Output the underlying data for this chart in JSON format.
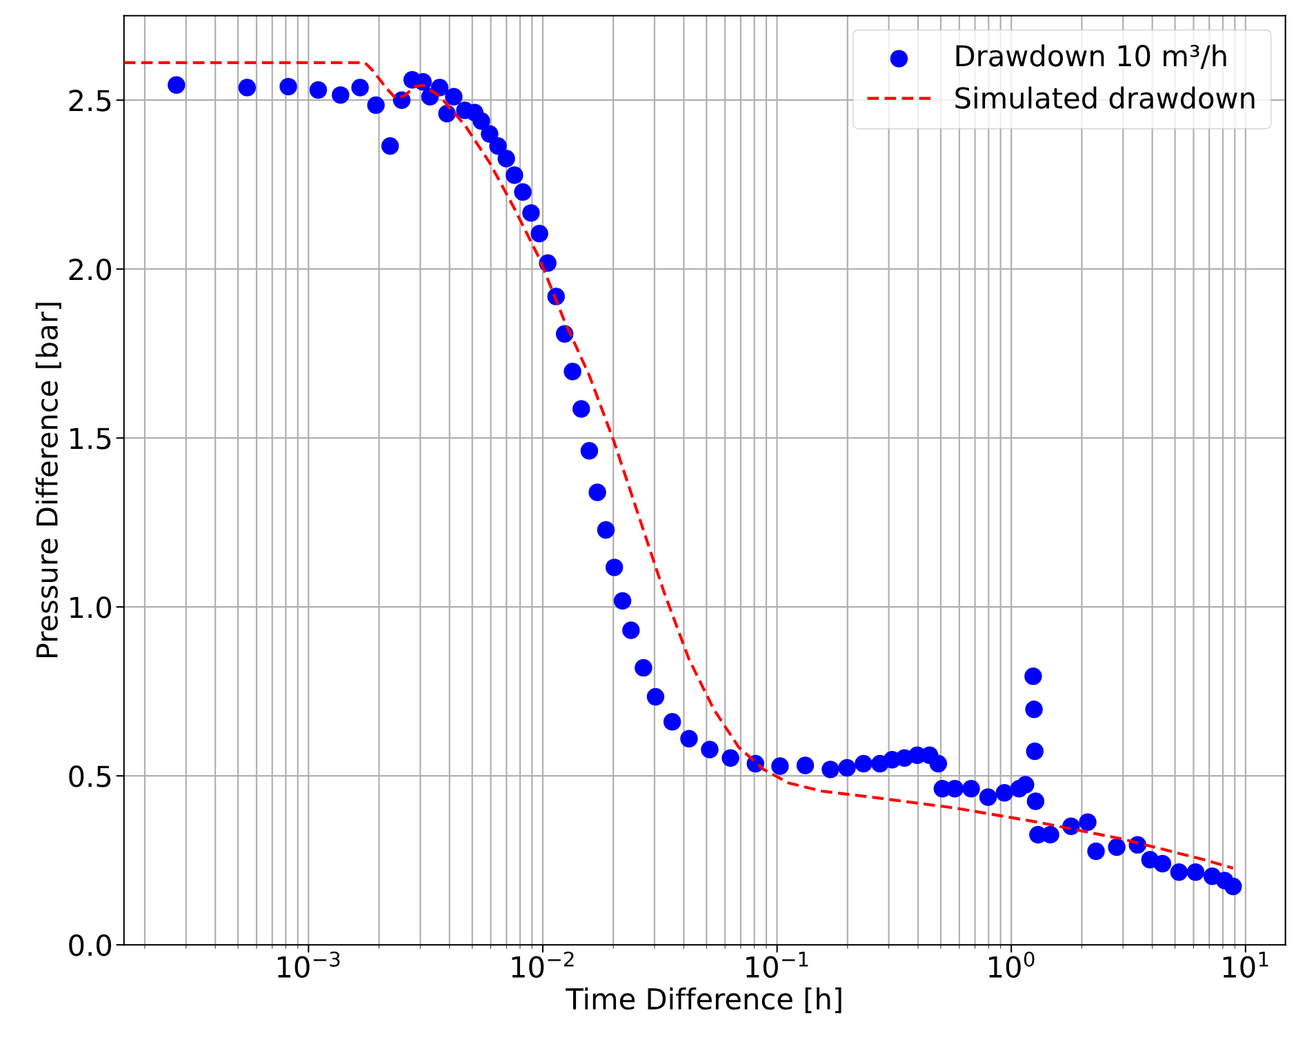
{
  "chart_data": {
    "type": "scatter",
    "xlabel": "Time Difference [h]",
    "ylabel": "Pressure Difference [bar]",
    "log": "x",
    "xlim": [
      0.000163,
      14.8
    ],
    "ylim": [
      0,
      2.75
    ],
    "xticks": [
      {
        "value": 0.001,
        "label": "10$^{−3}$"
      },
      {
        "value": 0.01,
        "label": "10$^{−2}$"
      },
      {
        "value": 0.1,
        "label": "10$^{−1}$"
      },
      {
        "value": 1,
        "label": "10$^{0}$"
      },
      {
        "value": 10,
        "label": "10$^{1}$"
      }
    ],
    "yticks": [
      {
        "value": 0,
        "label": "0.0"
      },
      0.5,
      {
        "value": 1,
        "label": "1.0"
      },
      1.5,
      {
        "value": 2,
        "label": "2.0"
      },
      2.5
    ],
    "grid": true,
    "legend": "top right",
    "series": [
      {
        "name": "Drawdown 10 m³/h",
        "marker": "circle",
        "color": "#0000ff",
        "x": [
          0.000273,
          0.000547,
          0.00082,
          0.0011,
          0.00137,
          0.00166,
          0.00194,
          0.00223,
          0.0025,
          0.00277,
          0.00308,
          0.0033,
          0.00363,
          0.0039,
          0.00417,
          0.00465,
          0.00512,
          0.00547,
          0.00593,
          0.00644,
          0.00699,
          0.00757,
          0.00822,
          0.00891,
          0.00968,
          0.0105,
          0.0114,
          0.0124,
          0.0134,
          0.0146,
          0.0158,
          0.0171,
          0.0186,
          0.0202,
          0.0219,
          0.0238,
          0.0269,
          0.0303,
          0.0357,
          0.0421,
          0.0516,
          0.0633,
          0.0809,
          0.103,
          0.132,
          0.169,
          0.199,
          0.234,
          0.275,
          0.31,
          0.35,
          0.397,
          0.448,
          0.488,
          0.508,
          0.574,
          0.674,
          0.796,
          0.935,
          1.08,
          1.15,
          1.24,
          1.25,
          1.26,
          1.27,
          1.3,
          1.47,
          1.8,
          2.12,
          2.3,
          2.82,
          3.46,
          3.91,
          4.42,
          5.2,
          6.12,
          7.21,
          8.15,
          8.85
        ],
        "values": [
          2.545,
          2.537,
          2.54,
          2.53,
          2.515,
          2.537,
          2.485,
          2.364,
          2.5,
          2.56,
          2.554,
          2.51,
          2.537,
          2.46,
          2.51,
          2.47,
          2.463,
          2.438,
          2.4,
          2.364,
          2.327,
          2.278,
          2.228,
          2.166,
          2.105,
          2.018,
          1.919,
          1.808,
          1.697,
          1.586,
          1.462,
          1.339,
          1.228,
          1.117,
          1.018,
          0.931,
          0.82,
          0.734,
          0.66,
          0.61,
          0.578,
          0.553,
          0.536,
          0.529,
          0.531,
          0.519,
          0.524,
          0.536,
          0.536,
          0.548,
          0.553,
          0.561,
          0.561,
          0.536,
          0.462,
          0.462,
          0.462,
          0.437,
          0.45,
          0.462,
          0.474,
          0.795,
          0.697,
          0.573,
          0.425,
          0.326,
          0.326,
          0.351,
          0.363,
          0.277,
          0.289,
          0.296,
          0.252,
          0.24,
          0.215,
          0.215,
          0.203,
          0.19,
          0.173
        ]
      },
      {
        "name": "Simulated drawdown",
        "type": "line",
        "line_style": "dashed",
        "color": "#ff0000",
        "x": [
          0.000163,
          0.00174,
          0.00189,
          0.00214,
          0.00236,
          0.00256,
          0.00284,
          0.00308,
          0.00363,
          0.00465,
          0.00593,
          0.00757,
          0.00968,
          0.0124,
          0.0158,
          0.0202,
          0.0258,
          0.033,
          0.0421,
          0.0537,
          0.0686,
          0.0877,
          0.112,
          0.155,
          0.254,
          0.574,
          1.3,
          2.94,
          6.65,
          8.85
        ],
        "values": [
          2.611,
          2.611,
          2.586,
          2.537,
          2.505,
          2.512,
          2.54,
          2.544,
          2.512,
          2.426,
          2.315,
          2.179,
          2.031,
          1.845,
          1.685,
          1.487,
          1.265,
          1.042,
          0.845,
          0.697,
          0.585,
          0.519,
          0.479,
          0.455,
          0.437,
          0.405,
          0.363,
          0.314,
          0.252,
          0.227
        ]
      }
    ]
  }
}
